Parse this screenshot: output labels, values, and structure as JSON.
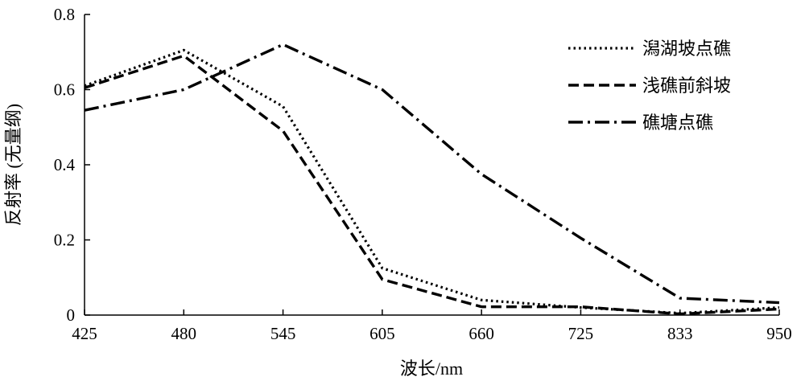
{
  "chart_data": {
    "type": "line",
    "title": "",
    "xlabel": "波长/nm",
    "ylabel": "反射率 (无量纲)",
    "categories": [
      "425",
      "480",
      "545",
      "605",
      "660",
      "725",
      "833",
      "950"
    ],
    "ylim": [
      0,
      0.8
    ],
    "yticks": [
      "0",
      "0.2",
      "0.4",
      "0.6",
      "0.8"
    ],
    "grid": false,
    "legend_position": "top-right",
    "series": [
      {
        "name": "潟湖坡点礁",
        "style": "dotted",
        "values": [
          0.61,
          0.705,
          0.555,
          0.125,
          0.04,
          0.02,
          0.005,
          0.02
        ]
      },
      {
        "name": "浅礁前斜坡",
        "style": "dashed",
        "values": [
          0.605,
          0.69,
          0.49,
          0.095,
          0.022,
          0.022,
          0.003,
          0.016
        ]
      },
      {
        "name": "礁塘点礁",
        "style": "dashdot",
        "values": [
          0.545,
          0.6,
          0.72,
          0.6,
          0.375,
          0.205,
          0.045,
          0.033
        ]
      }
    ]
  }
}
